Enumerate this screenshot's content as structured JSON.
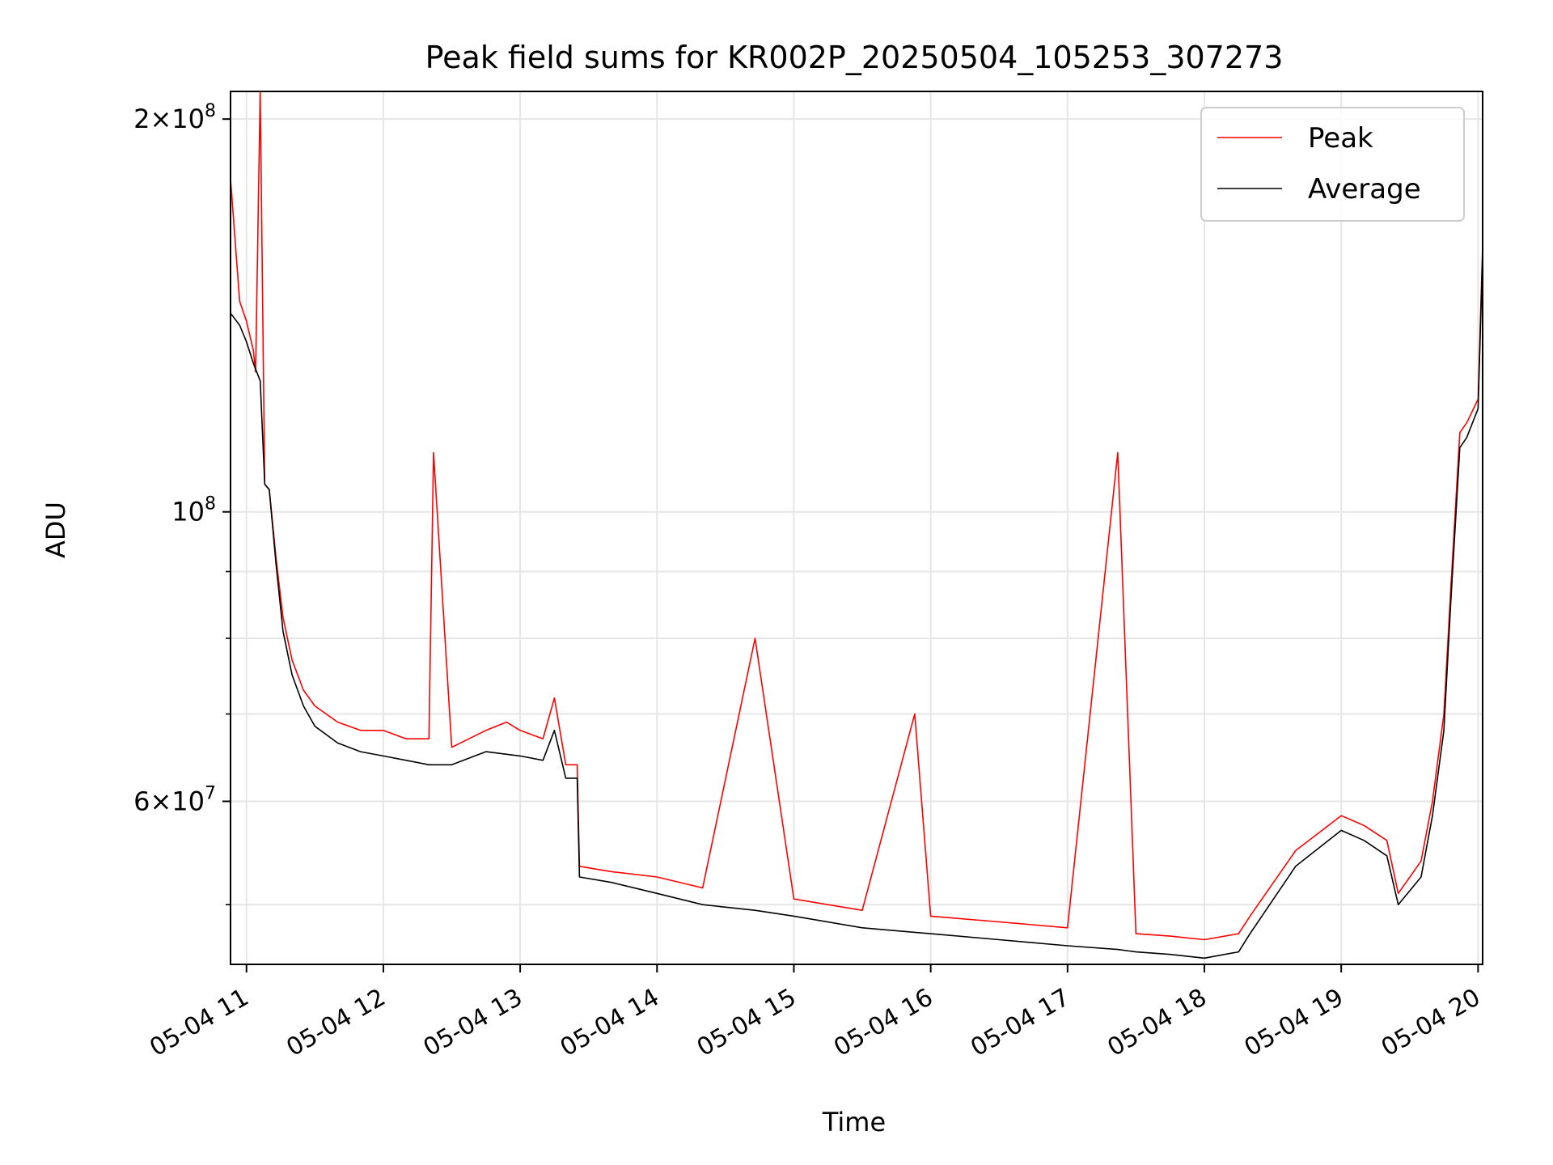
{
  "chart_data": {
    "type": "line",
    "title": "Peak field sums for KR002P_20250504_105253_307273",
    "xlabel": "Time",
    "ylabel": "ADU",
    "yscale": "log",
    "xlim": [
      "2025-05-04 10:53",
      "2025-05-04 20:02"
    ],
    "ylim": [
      45000000,
      210000000
    ],
    "grid": true,
    "legend_position": "top-right",
    "x_ticks": [
      "05-04 11",
      "05-04 12",
      "05-04 13",
      "05-04 14",
      "05-04 15",
      "05-04 16",
      "05-04 17",
      "05-04 18",
      "05-04 19",
      "05-04 20"
    ],
    "y_major_ticks": [
      {
        "value": 60000000,
        "mantissa": "6",
        "exponent": "7"
      },
      {
        "value": 100000000,
        "mantissa": "",
        "exponent": "8"
      },
      {
        "value": 200000000,
        "mantissa": "2",
        "exponent": "8"
      }
    ],
    "y_minor_ticks": [
      50000000,
      70000000,
      80000000,
      90000000
    ],
    "series": [
      {
        "name": "Peak",
        "color": "#ff0000",
        "x": [
          "2025-05-04 10:53",
          "2025-05-04 10:57",
          "2025-05-04 11:00",
          "2025-05-04 11:03",
          "2025-05-04 11:04",
          "2025-05-04 11:06",
          "2025-05-04 11:08",
          "2025-05-04 11:10",
          "2025-05-04 11:13",
          "2025-05-04 11:16",
          "2025-05-04 11:20",
          "2025-05-04 11:25",
          "2025-05-04 11:30",
          "2025-05-04 11:40",
          "2025-05-04 11:50",
          "2025-05-04 12:00",
          "2025-05-04 12:10",
          "2025-05-04 12:20",
          "2025-05-04 12:22",
          "2025-05-04 12:30",
          "2025-05-04 12:45",
          "2025-05-04 12:54",
          "2025-05-04 13:00",
          "2025-05-04 13:10",
          "2025-05-04 13:15",
          "2025-05-04 13:20",
          "2025-05-04 13:25",
          "2025-05-04 13:26",
          "2025-05-04 13:40",
          "2025-05-04 14:00",
          "2025-05-04 14:20",
          "2025-05-04 14:43",
          "2025-05-04 15:00",
          "2025-05-04 15:30",
          "2025-05-04 15:53",
          "2025-05-04 16:00",
          "2025-05-04 16:30",
          "2025-05-04 17:00",
          "2025-05-04 17:22",
          "2025-05-04 17:30",
          "2025-05-04 17:45",
          "2025-05-04 18:00",
          "2025-05-04 18:15",
          "2025-05-04 18:20",
          "2025-05-04 18:40",
          "2025-05-04 19:00",
          "2025-05-04 19:10",
          "2025-05-04 19:20",
          "2025-05-04 19:25",
          "2025-05-04 19:35",
          "2025-05-04 19:40",
          "2025-05-04 19:45",
          "2025-05-04 19:48",
          "2025-05-04 19:52",
          "2025-05-04 19:55",
          "2025-05-04 20:00",
          "2025-05-04 20:02"
        ],
        "y": [
          180000000,
          145000000,
          140000000,
          133000000,
          128000000,
          210000000,
          105000000,
          104000000,
          92000000,
          83000000,
          77000000,
          73000000,
          71000000,
          69000000,
          68000000,
          68000000,
          67000000,
          67000000,
          111000000,
          66000000,
          68000000,
          69000000,
          68000000,
          67000000,
          72000000,
          64000000,
          64000000,
          53500000,
          53000000,
          52500000,
          51500000,
          80000000,
          50500000,
          49500000,
          70000000,
          49000000,
          48500000,
          48000000,
          111000000,
          47500000,
          47300000,
          47000000,
          47500000,
          49000000,
          55000000,
          58500000,
          57500000,
          56000000,
          51000000,
          54000000,
          60000000,
          70000000,
          87000000,
          115000000,
          117000000,
          122000000,
          160000000
        ]
      },
      {
        "name": "Average",
        "color": "#000000",
        "x": [
          "2025-05-04 10:53",
          "2025-05-04 10:57",
          "2025-05-04 11:00",
          "2025-05-04 11:03",
          "2025-05-04 11:06",
          "2025-05-04 11:08",
          "2025-05-04 11:10",
          "2025-05-04 11:13",
          "2025-05-04 11:16",
          "2025-05-04 11:20",
          "2025-05-04 11:25",
          "2025-05-04 11:30",
          "2025-05-04 11:40",
          "2025-05-04 11:50",
          "2025-05-04 12:00",
          "2025-05-04 12:10",
          "2025-05-04 12:20",
          "2025-05-04 12:30",
          "2025-05-04 12:45",
          "2025-05-04 13:00",
          "2025-05-04 13:10",
          "2025-05-04 13:15",
          "2025-05-04 13:20",
          "2025-05-04 13:25",
          "2025-05-04 13:26",
          "2025-05-04 13:40",
          "2025-05-04 14:00",
          "2025-05-04 14:20",
          "2025-05-04 14:43",
          "2025-05-04 15:00",
          "2025-05-04 15:30",
          "2025-05-04 16:00",
          "2025-05-04 16:30",
          "2025-05-04 17:00",
          "2025-05-04 17:22",
          "2025-05-04 17:30",
          "2025-05-04 17:45",
          "2025-05-04 18:00",
          "2025-05-04 18:15",
          "2025-05-04 18:20",
          "2025-05-04 18:40",
          "2025-05-04 19:00",
          "2025-05-04 19:10",
          "2025-05-04 19:20",
          "2025-05-04 19:25",
          "2025-05-04 19:35",
          "2025-05-04 19:40",
          "2025-05-04 19:45",
          "2025-05-04 19:48",
          "2025-05-04 19:52",
          "2025-05-04 19:55",
          "2025-05-04 20:00",
          "2025-05-04 20:02"
        ],
        "y": [
          142000000,
          139000000,
          135000000,
          130000000,
          126000000,
          105000000,
          104000000,
          91000000,
          81000000,
          75000000,
          71000000,
          68500000,
          66500000,
          65500000,
          65000000,
          64500000,
          64000000,
          64000000,
          65500000,
          65000000,
          64500000,
          68000000,
          62500000,
          62500000,
          52500000,
          52000000,
          51000000,
          50000000,
          49500000,
          49000000,
          48000000,
          47500000,
          47000000,
          46500000,
          46200000,
          46000000,
          45800000,
          45500000,
          46000000,
          47500000,
          53500000,
          57000000,
          56000000,
          54500000,
          50000000,
          52500000,
          58500000,
          68000000,
          85000000,
          112000000,
          114000000,
          120000000,
          158000000
        ]
      }
    ]
  }
}
